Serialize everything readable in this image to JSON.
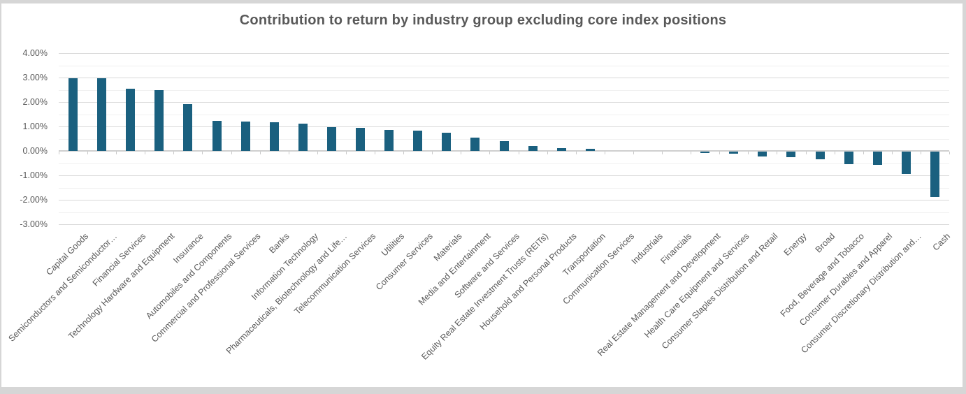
{
  "window": {
    "background_color": "#FFFFFF",
    "frame_color": "#D6D6D6"
  },
  "chart_data": {
    "type": "bar",
    "title": "Contribution to return by industry group excluding core index positions",
    "xlabel": "",
    "ylabel": "",
    "legend": "none",
    "grid": "major-and-minor-horizontal",
    "ylim": [
      -3.0,
      4.0
    ],
    "y_major_step": 1.0,
    "y_minor_step": 0.5,
    "y_tick_labels": [
      "4.00%",
      "3.00%",
      "2.00%",
      "1.00%",
      "0.00%",
      "-1.00%",
      "-2.00%",
      "-3.00%"
    ],
    "value_unit": "percent",
    "categories": [
      "Capital Goods",
      "Semiconductors and Semiconductor…",
      "Financial Services",
      "Technology Hardware and Equipment",
      "Insurance",
      "Automobiles and Components",
      "Commercial and Professional Services",
      "Banks",
      "Information Technology",
      "Pharmaceuticals, Biotechnology and Life…",
      "Telecommunication Services",
      "Utilities",
      "Consumer Services",
      "Materials",
      "Media and Entertainment",
      "Software and Services",
      "Equity Real Estate Investment Trusts (REITs)",
      "Household and Personal Products",
      "Transportation",
      "Communication Services",
      "Industrials",
      "Financials",
      "Real Estate Management and Development",
      "Health Care Equipment and Services",
      "Consumer Staples Distribution and Retail",
      "Energy",
      "Broad",
      "Food, Beverage and Tobacco",
      "Consumer Durables and Apparel",
      "Consumer Discretionary Distribution and…",
      "Cash"
    ],
    "values": [
      2.96,
      2.96,
      2.54,
      2.5,
      1.91,
      1.24,
      1.19,
      1.16,
      1.12,
      0.97,
      0.93,
      0.85,
      0.84,
      0.74,
      0.55,
      0.39,
      0.19,
      0.11,
      0.08,
      0.0,
      0.0,
      0.0,
      -0.07,
      -0.09,
      -0.21,
      -0.24,
      -0.31,
      -0.5,
      -0.54,
      -0.9,
      -1.85
    ],
    "colors": {
      "bar": "#1A607F",
      "title_text": "#595959",
      "axis_text": "#595959",
      "major_gridline": "#D9D9D9",
      "minor_gridline": "#F0F0F0",
      "axis_line": "#CFCFCF",
      "tick_mark": "#C9C9C9"
    }
  }
}
